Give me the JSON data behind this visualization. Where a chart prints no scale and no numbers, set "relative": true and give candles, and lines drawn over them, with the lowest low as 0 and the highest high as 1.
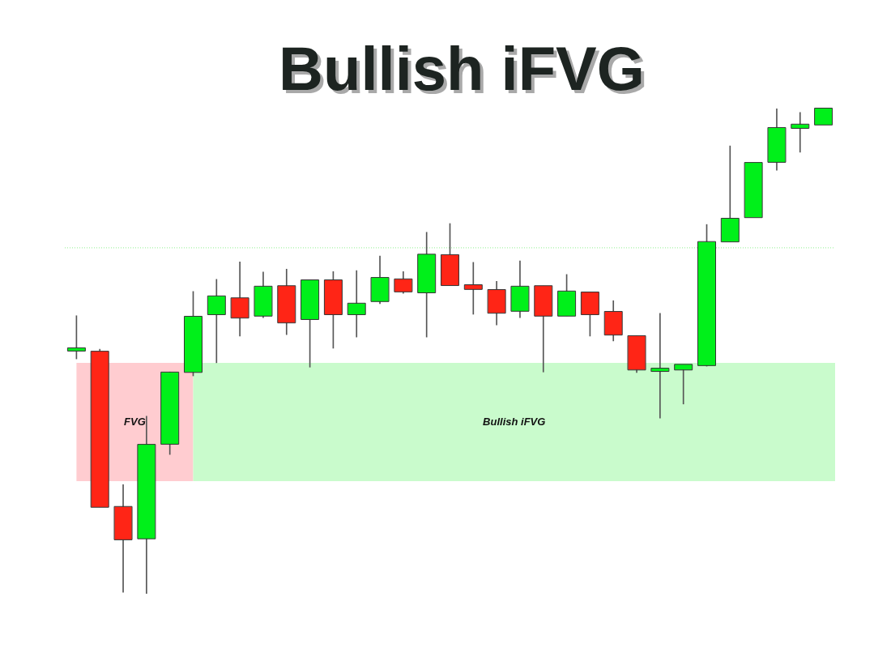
{
  "chart_data": {
    "type": "candlestick",
    "title": "Bullish iFVG",
    "relative": true,
    "categories": [
      null,
      null,
      null,
      null,
      null,
      null,
      null,
      null,
      null,
      null,
      null,
      null,
      null,
      null,
      null,
      null,
      null,
      null,
      null,
      null,
      null,
      null,
      null,
      null,
      null,
      null,
      null,
      null,
      null,
      null,
      null,
      null,
      null
    ],
    "ohlc": [
      [
        0.501,
        0.573,
        0.484,
        0.506
      ],
      [
        0.499,
        0.504,
        0.179,
        0.179
      ],
      [
        0.179,
        0.225,
        0.003,
        0.112
      ],
      [
        0.114,
        0.366,
        0,
        0.307
      ],
      [
        0.309,
        0.457,
        0.287,
        0.456
      ],
      [
        0.457,
        0.623,
        0.449,
        0.571
      ],
      [
        0.576,
        0.648,
        0.476,
        0.613
      ],
      [
        0.609,
        0.684,
        0.531,
        0.569
      ],
      [
        0.573,
        0.663,
        0.569,
        0.633
      ],
      [
        0.634,
        0.669,
        0.534,
        0.559
      ],
      [
        0.566,
        0.646,
        0.467,
        0.646
      ],
      [
        0.646,
        0.664,
        0.506,
        0.576
      ],
      [
        0.576,
        0.666,
        0.529,
        0.598
      ],
      [
        0.603,
        0.696,
        0.598,
        0.651
      ],
      [
        0.648,
        0.664,
        0.619,
        0.623
      ],
      [
        0.621,
        0.745,
        0.529,
        0.699
      ],
      [
        0.698,
        0.763,
        0.636,
        0.636
      ],
      [
        0.636,
        0.683,
        0.576,
        0.628
      ],
      [
        0.626,
        0.644,
        0.554,
        0.579
      ],
      [
        0.583,
        0.686,
        0.569,
        0.633
      ],
      [
        0.634,
        0.634,
        0.457,
        0.573
      ],
      [
        0.573,
        0.658,
        0.573,
        0.623
      ],
      [
        0.621,
        0.621,
        0.531,
        0.576
      ],
      [
        0.581,
        0.604,
        0.521,
        0.534
      ],
      [
        0.531,
        0.531,
        0.456,
        0.462
      ],
      [
        0.459,
        0.578,
        0.362,
        0.464
      ],
      [
        0.462,
        0.472,
        0.391,
        0.472
      ],
      [
        0.471,
        0.761,
        0.469,
        0.725
      ],
      [
        0.726,
        0.923,
        0.726,
        0.773
      ],
      [
        0.776,
        0.888,
        0.776,
        0.888
      ],
      [
        0.89,
        1,
        0.873,
        0.96
      ],
      [
        0.96,
        0.992,
        0.91,
        0.967
      ],
      [
        0.967,
        1,
        0.967,
        1
      ]
    ],
    "colors": [
      "#00f01a",
      "#ff2516",
      "#ff2516",
      "#00f01a",
      "#00f01a",
      "#00f01a",
      "#00f01a",
      "#ff2516",
      "#00f01a",
      "#ff2516",
      "#00f01a",
      "#ff2516",
      "#00f01a",
      "#00f01a",
      "#ff2516",
      "#00f01a",
      "#ff2516",
      "#ff2516",
      "#ff2516",
      "#00f01a",
      "#ff2516",
      "#00f01a",
      "#ff2516",
      "#ff2516",
      "#ff2516",
      "#00f01a",
      "#00f01a",
      "#00f01a",
      "#00f01a",
      "#00f01a",
      "#00f01a",
      "#00f01a",
      "#00f01a"
    ],
    "bands": [
      {
        "axis": "y",
        "from": 0.232,
        "to": 0.476,
        "label": "FVG",
        "color": "#ffccd0"
      },
      {
        "axis": "y",
        "from": 0.232,
        "to": 0.476,
        "label": "Bullish iFVG",
        "color": "#c9fbcc"
      }
    ],
    "ref_lines": [
      {
        "axis": "y",
        "value": 0.713,
        "color": "#8fef8f",
        "line_style": "dotted"
      }
    ]
  }
}
